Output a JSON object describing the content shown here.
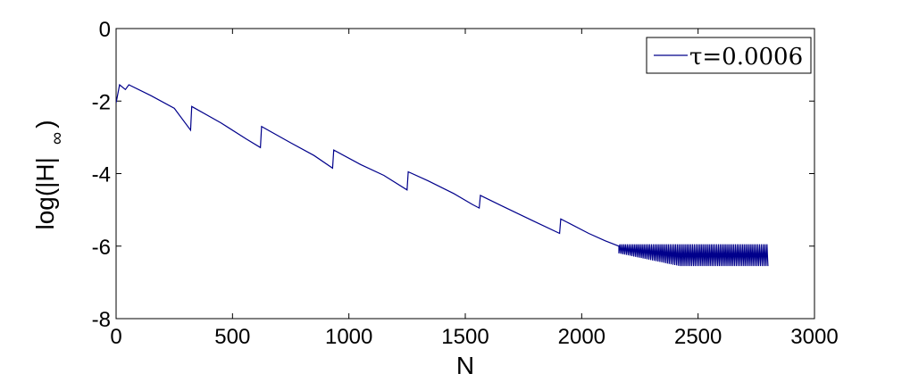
{
  "chart_data": {
    "type": "line",
    "title": "",
    "xlabel": "N",
    "ylabel": "log(|H|",
    "ylabel_subscript": "∞",
    "ylabel_close": ")",
    "xlim": [
      0,
      3000
    ],
    "ylim": [
      -8,
      0
    ],
    "xticks": [
      0,
      500,
      1000,
      1500,
      2000,
      2500,
      3000
    ],
    "yticks": [
      0,
      -2,
      -4,
      -6,
      -8
    ],
    "grid": false,
    "legend_position": "top-right",
    "line_color": "#00008b",
    "series": [
      {
        "name": "τ=0.0006",
        "points": [
          [
            0,
            -2.05
          ],
          [
            15,
            -1.55
          ],
          [
            40,
            -1.68
          ],
          [
            55,
            -1.55
          ],
          [
            150,
            -1.85
          ],
          [
            250,
            -2.2
          ],
          [
            320,
            -2.8
          ],
          [
            325,
            -2.15
          ],
          [
            450,
            -2.6
          ],
          [
            560,
            -3.05
          ],
          [
            620,
            -3.28
          ],
          [
            625,
            -2.7
          ],
          [
            750,
            -3.15
          ],
          [
            850,
            -3.5
          ],
          [
            930,
            -3.85
          ],
          [
            935,
            -3.35
          ],
          [
            1050,
            -3.75
          ],
          [
            1150,
            -4.05
          ],
          [
            1250,
            -4.45
          ],
          [
            1255,
            -3.95
          ],
          [
            1340,
            -4.2
          ],
          [
            1450,
            -4.55
          ],
          [
            1530,
            -4.85
          ],
          [
            1560,
            -4.95
          ],
          [
            1565,
            -4.6
          ],
          [
            1660,
            -4.9
          ],
          [
            1790,
            -5.3
          ],
          [
            1905,
            -5.65
          ],
          [
            1910,
            -5.25
          ],
          [
            2030,
            -5.65
          ],
          [
            2100,
            -5.85
          ],
          [
            2160,
            -6.0
          ],
          [
            2260,
            -6.25
          ],
          [
            2400,
            -6.5
          ],
          [
            2800,
            -6.5
          ]
        ],
        "oscillation": {
          "start_x": 2160,
          "end_x": 2800,
          "upper": -5.95,
          "lower_start": -6.2,
          "lower_end": -6.55
        }
      }
    ]
  }
}
